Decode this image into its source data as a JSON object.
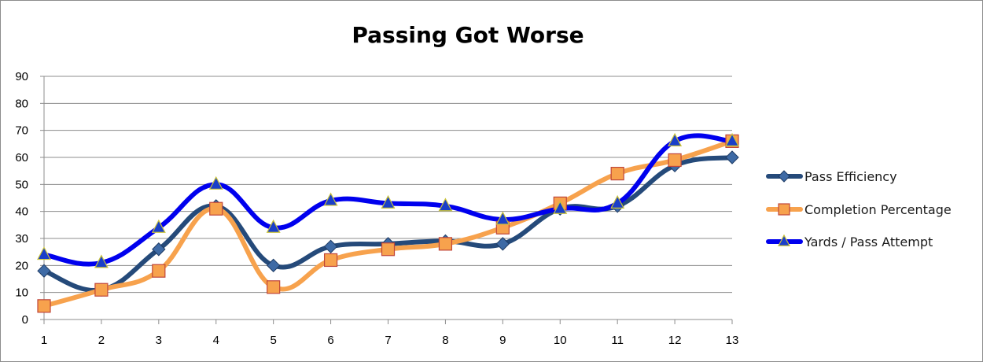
{
  "chart_data": {
    "type": "line",
    "title": "Passing Got Worse",
    "xlabel": "",
    "ylabel": "",
    "x": [
      "1",
      "2",
      "3",
      "4",
      "5",
      "6",
      "7",
      "8",
      "9",
      "10",
      "11",
      "12",
      "13"
    ],
    "ylim": [
      0,
      90
    ],
    "yticks": [
      "0",
      "10",
      "20",
      "30",
      "40",
      "50",
      "60",
      "70",
      "80",
      "90"
    ],
    "grid": true,
    "legend_position": "right",
    "series": [
      {
        "name": "Pass Efficiency",
        "color": "#254a7a",
        "marker": "diamond",
        "values": [
          18,
          11,
          26,
          42,
          20,
          27,
          28,
          29,
          28,
          41,
          42,
          57,
          60
        ]
      },
      {
        "name": "Completion Percentage",
        "color": "#f7a24d",
        "marker": "square",
        "values": [
          5,
          11,
          18,
          41,
          12,
          22,
          26,
          28,
          34,
          43,
          54,
          59,
          66
        ]
      },
      {
        "name": "Yards / Pass Attempt",
        "color": "#0000ee",
        "marker": "triangle",
        "values": [
          24,
          21,
          34,
          50,
          34,
          44,
          43,
          42,
          37,
          41,
          43,
          66,
          66
        ]
      }
    ]
  }
}
